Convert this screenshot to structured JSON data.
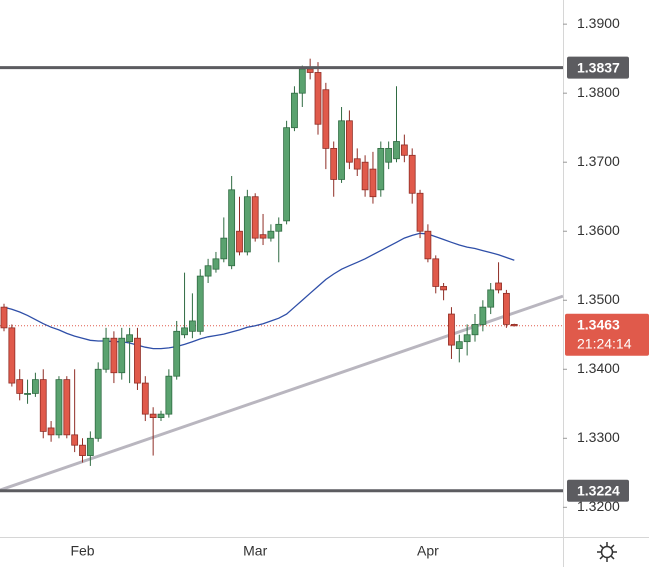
{
  "chart_data": {
    "type": "candlestick",
    "categories": [
      null,
      null,
      null,
      null,
      null,
      null,
      null,
      null,
      null,
      null,
      "Feb",
      null,
      null,
      null,
      null,
      null,
      null,
      null,
      null,
      null,
      null,
      null,
      null,
      null,
      null,
      null,
      null,
      null,
      null,
      null,
      null,
      null,
      "Mar",
      null,
      null,
      null,
      null,
      null,
      null,
      null,
      null,
      null,
      null,
      null,
      null,
      null,
      null,
      null,
      null,
      null,
      null,
      null,
      null,
      null,
      "Apr",
      null,
      null,
      null,
      null,
      null,
      null,
      null,
      null,
      null,
      null,
      null
    ],
    "open": [
      1.349,
      1.346,
      1.3385,
      1.3365,
      1.3365,
      1.3385,
      1.3315,
      1.3305,
      1.3385,
      1.3305,
      1.329,
      1.3275,
      1.33,
      1.34,
      1.3445,
      1.3395,
      1.344,
      1.3445,
      1.338,
      1.3335,
      1.333,
      1.3335,
      1.339,
      1.345,
      1.3455,
      1.3455,
      1.3535,
      1.3545,
      1.356,
      1.355,
      1.36,
      1.357,
      1.365,
      1.3595,
      1.359,
      1.36,
      1.3615,
      1.375,
      1.38,
      1.3835,
      1.383,
      1.3805,
      1.372,
      1.3675,
      1.376,
      1.3705,
      1.37,
      1.369,
      1.366,
      1.37,
      1.3705,
      1.3725,
      1.371,
      1.3655,
      1.36,
      1.356,
      1.352,
      1.348,
      1.343,
      1.344,
      1.345,
      1.3465,
      1.349,
      1.3525,
      1.351,
      1.3465
    ],
    "high": [
      1.3495,
      1.3465,
      1.34,
      1.3385,
      1.3395,
      1.34,
      1.3325,
      1.339,
      1.339,
      1.34,
      1.33,
      1.331,
      1.341,
      1.346,
      1.3455,
      1.346,
      1.346,
      1.346,
      1.339,
      1.3345,
      1.334,
      1.34,
      1.347,
      1.354,
      1.351,
      1.3545,
      1.356,
      1.357,
      1.362,
      1.368,
      1.365,
      1.366,
      1.3655,
      1.3625,
      1.361,
      1.362,
      1.376,
      1.381,
      1.384,
      1.385,
      1.3845,
      1.3815,
      1.373,
      1.378,
      1.3775,
      1.372,
      1.371,
      1.3715,
      1.373,
      1.373,
      1.381,
      1.374,
      1.372,
      1.366,
      1.361,
      1.3565,
      1.3525,
      1.349,
      1.345,
      1.3465,
      1.348,
      1.35,
      1.3525,
      1.3555,
      1.3515,
      1.3466
    ],
    "low": [
      1.3455,
      1.3375,
      1.3355,
      1.335,
      1.336,
      1.33,
      1.3295,
      1.33,
      1.33,
      1.328,
      1.3265,
      1.326,
      1.3295,
      1.3395,
      1.338,
      1.3385,
      1.338,
      1.337,
      1.3325,
      1.3275,
      1.3325,
      1.333,
      1.3385,
      1.3445,
      1.3445,
      1.345,
      1.3525,
      1.354,
      1.3555,
      1.3545,
      1.3565,
      1.3565,
      1.3585,
      1.358,
      1.3585,
      1.3555,
      1.361,
      1.3745,
      1.378,
      1.382,
      1.374,
      1.369,
      1.365,
      1.367,
      1.369,
      1.368,
      1.365,
      1.364,
      1.365,
      1.369,
      1.37,
      1.37,
      1.364,
      1.359,
      1.3555,
      1.351,
      1.35,
      1.3415,
      1.341,
      1.342,
      1.344,
      1.3455,
      1.348,
      1.351,
      1.346,
      1.3462
    ],
    "close": [
      1.346,
      1.338,
      1.3365,
      1.3365,
      1.3385,
      1.331,
      1.3305,
      1.3385,
      1.3305,
      1.329,
      1.3275,
      1.33,
      1.34,
      1.3445,
      1.3395,
      1.3445,
      1.345,
      1.338,
      1.3335,
      1.333,
      1.3335,
      1.339,
      1.3455,
      1.346,
      1.347,
      1.3535,
      1.355,
      1.356,
      1.359,
      1.366,
      1.357,
      1.365,
      1.359,
      1.359,
      1.36,
      1.361,
      1.375,
      1.38,
      1.3835,
      1.383,
      1.3755,
      1.372,
      1.3675,
      1.376,
      1.37,
      1.369,
      1.366,
      1.365,
      1.372,
      1.372,
      1.373,
      1.371,
      1.3655,
      1.36,
      1.356,
      1.352,
      1.3515,
      1.3435,
      1.344,
      1.345,
      1.3465,
      1.349,
      1.3515,
      1.3515,
      1.3465,
      1.3463
    ],
    "up_color": "#5aa26f",
    "down_color": "#e05a4b",
    "moving_average": {
      "color": "#2f4fa8",
      "values": [
        1.349,
        1.3487,
        1.3483,
        1.3478,
        1.3472,
        1.3466,
        1.3461,
        1.3457,
        1.3452,
        1.3448,
        1.3445,
        1.3442,
        1.3441,
        1.3441,
        1.344,
        1.344,
        1.3438,
        1.3435,
        1.3432,
        1.343,
        1.343,
        1.3431,
        1.3433,
        1.3436,
        1.344,
        1.3444,
        1.3447,
        1.3449,
        1.3451,
        1.3454,
        1.3457,
        1.3461,
        1.3463,
        1.3466,
        1.347,
        1.3474,
        1.348,
        1.349,
        1.35,
        1.351,
        1.352,
        1.353,
        1.3538,
        1.3545,
        1.355,
        1.3555,
        1.356,
        1.3566,
        1.3572,
        1.3578,
        1.3584,
        1.359,
        1.3594,
        1.3597,
        1.3596,
        1.3592,
        1.3588,
        1.3584,
        1.358,
        1.3577,
        1.3575,
        1.3572,
        1.3569,
        1.3566,
        1.3562,
        1.3558
      ]
    },
    "trendline": {
      "color": "#b9b6bf",
      "start": 1.3225,
      "end": 1.3506
    },
    "levels": [
      {
        "value": 1.3837,
        "label": "1.3837",
        "color": "#5c5c60"
      },
      {
        "value": 1.3224,
        "label": "1.3224",
        "color": "#5c5c60"
      }
    ],
    "last_price": {
      "value": 1.3463,
      "label": "1.3463",
      "countdown": "21:24:14",
      "color": "#e05a4b"
    },
    "ylim": [
      1.3157,
      1.3935
    ],
    "yticks": [
      {
        "value": 1.32,
        "label": "1.3200"
      },
      {
        "value": 1.33,
        "label": "1.3300"
      },
      {
        "value": 1.34,
        "label": "1.3400"
      },
      {
        "value": 1.35,
        "label": "1.3500"
      },
      {
        "value": 1.36,
        "label": "1.3600"
      },
      {
        "value": 1.37,
        "label": "1.3700"
      },
      {
        "value": 1.38,
        "label": "1.3800"
      },
      {
        "value": 1.39,
        "label": "1.3900"
      }
    ]
  }
}
